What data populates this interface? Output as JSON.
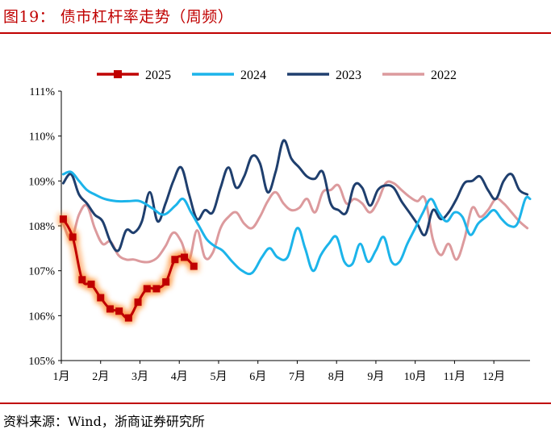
{
  "header": {
    "title": "图19：   债市杠杆率走势（周频）"
  },
  "footer": {
    "source": "资料来源：Wind，浙商证券研究所"
  },
  "chart_data": {
    "type": "line",
    "title": "债市杠杆率走势（周频）",
    "xlabel": "",
    "ylabel": "",
    "ylim": [
      105,
      111
    ],
    "yticks": [
      "105%",
      "106%",
      "107%",
      "108%",
      "109%",
      "110%",
      "111%"
    ],
    "xlim": [
      1,
      12.92
    ],
    "xticks": [
      "1月",
      "2月",
      "3月",
      "4月",
      "5月",
      "6月",
      "7月",
      "8月",
      "9月",
      "10月",
      "11月",
      "12月"
    ],
    "legend": "top",
    "grid": false,
    "series": [
      {
        "name": "2025",
        "color": "#c00000",
        "markers": true,
        "glow": true,
        "x": [
          1.05,
          1.29,
          1.53,
          1.76,
          2.0,
          2.24,
          2.47,
          2.71,
          2.95,
          3.18,
          3.42,
          3.66,
          3.89,
          4.13,
          4.37
        ],
        "values": [
          108.15,
          107.75,
          106.8,
          106.7,
          106.4,
          106.15,
          106.1,
          105.95,
          106.3,
          106.6,
          106.6,
          106.75,
          107.25,
          107.3,
          107.1
        ]
      },
      {
        "name": "2024",
        "color": "#1cb4ea",
        "x": [
          1.05,
          1.25,
          1.45,
          1.65,
          1.85,
          2.1,
          2.4,
          2.7,
          3.0,
          3.3,
          3.6,
          3.9,
          4.1,
          4.3,
          4.5,
          4.7,
          4.9,
          5.1,
          5.35,
          5.6,
          5.85,
          6.1,
          6.3,
          6.5,
          6.75,
          7.0,
          7.2,
          7.4,
          7.6,
          7.8,
          8.0,
          8.2,
          8.4,
          8.6,
          8.8,
          9.0,
          9.2,
          9.4,
          9.6,
          9.8,
          10.0,
          10.2,
          10.4,
          10.6,
          10.8,
          11.0,
          11.2,
          11.4,
          11.6,
          11.8,
          12.0,
          12.2,
          12.4,
          12.6,
          12.8,
          12.92
        ],
        "values": [
          109.15,
          109.2,
          109.0,
          108.8,
          108.7,
          108.6,
          108.55,
          108.55,
          108.55,
          108.4,
          108.25,
          108.45,
          108.6,
          108.3,
          108.0,
          107.7,
          107.55,
          107.45,
          107.2,
          107.0,
          106.95,
          107.3,
          107.5,
          107.3,
          107.3,
          107.95,
          107.5,
          107.0,
          107.35,
          107.6,
          107.75,
          107.2,
          107.15,
          107.6,
          107.2,
          107.45,
          107.75,
          107.2,
          107.2,
          107.6,
          107.95,
          108.3,
          108.6,
          108.3,
          108.1,
          108.3,
          108.2,
          107.8,
          108.05,
          108.2,
          108.35,
          108.15,
          108.0,
          108.05,
          108.6,
          108.6
        ]
      },
      {
        "name": "2023",
        "color": "#1f3f6e",
        "x": [
          1.05,
          1.25,
          1.45,
          1.65,
          1.85,
          2.05,
          2.25,
          2.45,
          2.65,
          2.85,
          3.05,
          3.25,
          3.45,
          3.65,
          3.85,
          4.05,
          4.25,
          4.45,
          4.65,
          4.85,
          5.05,
          5.25,
          5.45,
          5.65,
          5.85,
          6.05,
          6.25,
          6.45,
          6.65,
          6.85,
          7.05,
          7.25,
          7.45,
          7.65,
          7.85,
          8.05,
          8.25,
          8.45,
          8.65,
          8.85,
          9.05,
          9.25,
          9.45,
          9.65,
          9.85,
          10.05,
          10.25,
          10.45,
          10.65,
          10.85,
          11.05,
          11.25,
          11.45,
          11.65,
          11.85,
          12.05,
          12.25,
          12.45,
          12.65,
          12.85
        ],
        "values": [
          108.95,
          109.15,
          108.7,
          108.5,
          108.25,
          108.1,
          107.65,
          107.45,
          107.9,
          107.85,
          108.1,
          108.75,
          108.1,
          108.5,
          109.0,
          109.3,
          108.7,
          108.15,
          108.35,
          108.3,
          108.85,
          109.3,
          108.85,
          109.1,
          109.55,
          109.4,
          108.75,
          109.2,
          109.9,
          109.5,
          109.3,
          109.1,
          109.05,
          109.2,
          108.5,
          108.35,
          108.3,
          108.9,
          108.85,
          108.45,
          108.8,
          108.9,
          108.85,
          108.55,
          108.3,
          108.05,
          107.8,
          108.35,
          108.15,
          108.3,
          108.6,
          108.95,
          109.0,
          109.1,
          108.8,
          108.6,
          109.0,
          109.15,
          108.8,
          108.7
        ]
      },
      {
        "name": "2022",
        "color": "#dc9a9d",
        "x": [
          1.05,
          1.25,
          1.45,
          1.65,
          1.85,
          2.05,
          2.25,
          2.45,
          2.65,
          2.85,
          3.05,
          3.25,
          3.45,
          3.65,
          3.85,
          4.05,
          4.25,
          4.45,
          4.65,
          4.85,
          5.05,
          5.25,
          5.45,
          5.65,
          5.85,
          6.05,
          6.25,
          6.45,
          6.65,
          6.85,
          7.05,
          7.25,
          7.45,
          7.65,
          7.85,
          8.05,
          8.25,
          8.45,
          8.65,
          8.85,
          9.05,
          9.25,
          9.45,
          9.65,
          9.85,
          10.05,
          10.25,
          10.45,
          10.65,
          10.85,
          11.05,
          11.25,
          11.45,
          11.65,
          11.85,
          12.05,
          12.25,
          12.45,
          12.65,
          12.85
        ],
        "values": [
          108.05,
          107.7,
          108.25,
          108.45,
          107.95,
          107.6,
          107.65,
          107.35,
          107.25,
          107.25,
          107.2,
          107.2,
          107.3,
          107.55,
          107.85,
          107.65,
          107.25,
          107.9,
          107.3,
          107.4,
          107.95,
          108.2,
          108.3,
          108.05,
          107.95,
          108.2,
          108.55,
          108.75,
          108.5,
          108.35,
          108.4,
          108.6,
          108.3,
          108.75,
          108.8,
          108.9,
          108.5,
          108.6,
          108.5,
          108.3,
          108.55,
          108.95,
          108.95,
          108.8,
          108.65,
          108.55,
          108.6,
          107.7,
          107.35,
          107.6,
          107.25,
          107.7,
          108.4,
          108.2,
          108.35,
          108.6,
          108.5,
          108.3,
          108.1,
          107.95
        ]
      }
    ]
  }
}
